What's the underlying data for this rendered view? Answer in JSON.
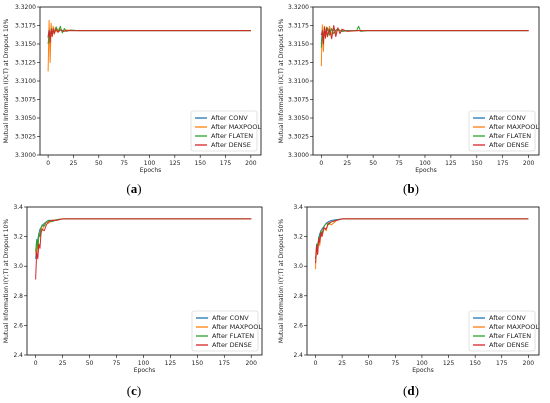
{
  "colors": {
    "After CONV": "#1f77b4",
    "After MAXPOOL": "#ff7f0e",
    "After FLATEN": "#2ca02c",
    "After DENSE": "#d62728"
  },
  "chart_data": [
    {
      "type": "line",
      "caption": "(a)",
      "caption_letter": "a",
      "xlabel": "Epochs",
      "ylabel": "Mutual Information I(X;T) at Dropout 10%",
      "xlim": [
        -8,
        210
      ],
      "ylim": [
        3.3,
        3.32
      ],
      "xticks": [
        0,
        25,
        50,
        75,
        100,
        125,
        150,
        175,
        200
      ],
      "yticks": [
        3.3,
        3.3025,
        3.305,
        3.3075,
        3.31,
        3.3125,
        3.315,
        3.3175,
        3.32
      ],
      "ytick_labels": [
        "3.3000",
        "3.3025",
        "3.3050",
        "3.3075",
        "3.3100",
        "3.3125",
        "3.3150",
        "3.3175",
        "3.3200"
      ],
      "legend_position": "lower-right",
      "series": [
        {
          "name": "After CONV",
          "x": [
            0,
            1,
            2,
            3,
            4,
            5,
            6,
            8,
            10,
            12,
            15,
            20,
            30,
            50,
            100,
            150,
            200
          ],
          "y": [
            3.3158,
            3.3172,
            3.3162,
            3.3168,
            3.3165,
            3.317,
            3.3167,
            3.3169,
            3.3168,
            3.3169,
            3.3168,
            3.3168,
            3.3168,
            3.3168,
            3.3168,
            3.3168,
            3.3168
          ]
        },
        {
          "name": "After MAXPOOL",
          "x": [
            0,
            1,
            2,
            3,
            4,
            5,
            6,
            7,
            9,
            11,
            14,
            18,
            25,
            40,
            100,
            150,
            200
          ],
          "y": [
            3.3113,
            3.3182,
            3.3125,
            3.3178,
            3.316,
            3.3174,
            3.3163,
            3.3172,
            3.3166,
            3.3171,
            3.3167,
            3.3169,
            3.3168,
            3.3168,
            3.3168,
            3.3168,
            3.3168
          ]
        },
        {
          "name": "After FLATEN",
          "x": [
            0,
            1,
            2,
            3,
            4,
            5,
            6,
            8,
            10,
            12,
            14,
            16,
            18,
            22,
            30,
            50,
            100,
            150,
            200
          ],
          "y": [
            3.315,
            3.3165,
            3.3158,
            3.3171,
            3.3162,
            3.317,
            3.3164,
            3.3173,
            3.3166,
            3.3174,
            3.3165,
            3.3171,
            3.3167,
            3.3169,
            3.3168,
            3.3168,
            3.3168,
            3.3168,
            3.3168
          ]
        },
        {
          "name": "After DENSE",
          "x": [
            0,
            1,
            2,
            3,
            4,
            5,
            6,
            8,
            10,
            12,
            15,
            20,
            30,
            50,
            100,
            150,
            200
          ],
          "y": [
            3.316,
            3.3168,
            3.3152,
            3.317,
            3.316,
            3.3171,
            3.3164,
            3.317,
            3.3166,
            3.3169,
            3.3167,
            3.3168,
            3.3168,
            3.3168,
            3.3168,
            3.3168,
            3.3168
          ]
        }
      ]
    },
    {
      "type": "line",
      "caption": "(b)",
      "caption_letter": "b",
      "xlabel": "Epochs",
      "ylabel": "Mutual Information I(X;T) at Dropout 50%",
      "xlim": [
        -8,
        210
      ],
      "ylim": [
        3.3,
        3.32
      ],
      "xticks": [
        0,
        25,
        50,
        75,
        100,
        125,
        150,
        175,
        200
      ],
      "yticks": [
        3.3,
        3.3025,
        3.305,
        3.3075,
        3.31,
        3.3125,
        3.315,
        3.3175,
        3.32
      ],
      "ytick_labels": [
        "3.3000",
        "3.3025",
        "3.3050",
        "3.3075",
        "3.3100",
        "3.3125",
        "3.3150",
        "3.3175",
        "3.3200"
      ],
      "legend_position": "lower-right",
      "series": [
        {
          "name": "After CONV",
          "x": [
            0,
            1,
            2,
            3,
            4,
            6,
            8,
            10,
            12,
            15,
            20,
            30,
            50,
            100,
            150,
            200
          ],
          "y": [
            3.315,
            3.317,
            3.316,
            3.3172,
            3.3164,
            3.317,
            3.3166,
            3.3169,
            3.3168,
            3.3169,
            3.3168,
            3.3168,
            3.3168,
            3.3168,
            3.3168,
            3.3168
          ]
        },
        {
          "name": "After MAXPOOL",
          "x": [
            0,
            1,
            2,
            3,
            4,
            5,
            6,
            8,
            10,
            12,
            14,
            16,
            20,
            30,
            50,
            100,
            150,
            200
          ],
          "y": [
            3.312,
            3.3176,
            3.314,
            3.3174,
            3.3158,
            3.3173,
            3.316,
            3.3174,
            3.3162,
            3.3172,
            3.3165,
            3.317,
            3.3167,
            3.3168,
            3.3168,
            3.3168,
            3.3168,
            3.3168
          ]
        },
        {
          "name": "After FLATEN",
          "x": [
            0,
            1,
            2,
            3,
            4,
            6,
            8,
            10,
            12,
            15,
            20,
            25,
            30,
            34,
            36,
            38,
            45,
            60,
            100,
            150,
            200
          ],
          "y": [
            3.3145,
            3.3168,
            3.3155,
            3.317,
            3.316,
            3.3172,
            3.3162,
            3.3171,
            3.3164,
            3.317,
            3.3167,
            3.3168,
            3.3168,
            3.3168,
            3.3174,
            3.3167,
            3.3168,
            3.3168,
            3.3168,
            3.3168,
            3.3168
          ]
        },
        {
          "name": "After DENSE",
          "x": [
            0,
            1,
            2,
            3,
            4,
            5,
            6,
            8,
            10,
            12,
            14,
            16,
            18,
            20,
            25,
            35,
            60,
            100,
            150,
            200
          ],
          "y": [
            3.3162,
            3.3168,
            3.315,
            3.3173,
            3.3158,
            3.3172,
            3.316,
            3.317,
            3.3157,
            3.3175,
            3.316,
            3.3172,
            3.3164,
            3.317,
            3.3167,
            3.3168,
            3.3168,
            3.3168,
            3.3168,
            3.3168
          ]
        }
      ]
    },
    {
      "type": "line",
      "caption": "(c)",
      "caption_letter": "c",
      "xlabel": "Epochs",
      "ylabel": "Mutual Information I(Y;T) at Dropout 10%",
      "xlim": [
        -8,
        210
      ],
      "ylim": [
        2.4,
        3.4
      ],
      "xticks": [
        0,
        25,
        50,
        75,
        100,
        125,
        150,
        175,
        200
      ],
      "yticks": [
        2.4,
        2.6,
        2.8,
        3.0,
        3.2,
        3.4
      ],
      "ytick_labels": [
        "2.4",
        "2.6",
        "2.8",
        "3.0",
        "3.2",
        "3.4"
      ],
      "legend_position": "lower-right",
      "series": [
        {
          "name": "After CONV",
          "x": [
            0,
            1,
            2,
            3,
            4,
            6,
            8,
            10,
            12,
            15,
            20,
            25,
            30,
            50,
            100,
            150,
            200
          ],
          "y": [
            3.05,
            3.12,
            3.18,
            3.22,
            3.25,
            3.27,
            3.29,
            3.3,
            3.31,
            3.31,
            3.315,
            3.32,
            3.32,
            3.32,
            3.32,
            3.32,
            3.32
          ]
        },
        {
          "name": "After MAXPOOL",
          "x": [
            0,
            1,
            2,
            3,
            4,
            5,
            6,
            8,
            10,
            12,
            15,
            20,
            25,
            30,
            50,
            100,
            150,
            200
          ],
          "y": [
            3.08,
            3.15,
            3.1,
            3.2,
            3.22,
            3.26,
            3.24,
            3.28,
            3.3,
            3.29,
            3.31,
            3.315,
            3.32,
            3.32,
            3.32,
            3.32,
            3.32,
            3.32
          ]
        },
        {
          "name": "After FLATEN",
          "x": [
            0,
            1,
            2,
            3,
            4,
            5,
            6,
            8,
            10,
            12,
            15,
            20,
            25,
            30,
            50,
            100,
            150,
            200
          ],
          "y": [
            3.1,
            3.18,
            3.12,
            3.22,
            3.2,
            3.26,
            3.28,
            3.27,
            3.3,
            3.31,
            3.3,
            3.315,
            3.32,
            3.32,
            3.32,
            3.32,
            3.32,
            3.32
          ]
        },
        {
          "name": "After DENSE",
          "x": [
            0,
            1,
            2,
            3,
            4,
            5,
            6,
            8,
            10,
            12,
            15,
            20,
            25,
            30,
            50,
            100,
            150,
            200
          ],
          "y": [
            2.91,
            3.1,
            3.05,
            3.15,
            3.12,
            3.22,
            3.25,
            3.24,
            3.28,
            3.3,
            3.31,
            3.31,
            3.32,
            3.32,
            3.32,
            3.32,
            3.32,
            3.32
          ]
        }
      ]
    },
    {
      "type": "line",
      "caption": "(d)",
      "caption_letter": "d",
      "xlabel": "Epochs",
      "ylabel": "Mutual Information I(Y;T) at Dropout 50%",
      "xlim": [
        -8,
        210
      ],
      "ylim": [
        2.4,
        3.4
      ],
      "xticks": [
        0,
        25,
        50,
        75,
        100,
        125,
        150,
        175,
        200
      ],
      "yticks": [
        2.4,
        2.6,
        2.8,
        3.0,
        3.2,
        3.4
      ],
      "ytick_labels": [
        "2.4",
        "2.6",
        "2.8",
        "3.0",
        "3.2",
        "3.4"
      ],
      "legend_position": "lower-right",
      "series": [
        {
          "name": "After CONV",
          "x": [
            0,
            1,
            2,
            3,
            4,
            6,
            8,
            10,
            12,
            15,
            20,
            25,
            30,
            50,
            100,
            150,
            200
          ],
          "y": [
            3.05,
            3.1,
            3.15,
            3.18,
            3.22,
            3.25,
            3.27,
            3.29,
            3.3,
            3.31,
            3.315,
            3.32,
            3.32,
            3.32,
            3.32,
            3.32,
            3.32
          ]
        },
        {
          "name": "After MAXPOOL",
          "x": [
            0,
            1,
            2,
            3,
            4,
            5,
            6,
            8,
            10,
            12,
            15,
            20,
            25,
            30,
            50,
            100,
            150,
            200
          ],
          "y": [
            2.98,
            3.12,
            3.08,
            3.18,
            3.14,
            3.22,
            3.2,
            3.26,
            3.24,
            3.29,
            3.28,
            3.31,
            3.32,
            3.32,
            3.32,
            3.32,
            3.32,
            3.32
          ]
        },
        {
          "name": "After FLATEN",
          "x": [
            0,
            1,
            2,
            3,
            4,
            5,
            6,
            8,
            10,
            12,
            15,
            20,
            25,
            30,
            50,
            100,
            150,
            200
          ],
          "y": [
            3.05,
            3.15,
            3.1,
            3.2,
            3.18,
            3.24,
            3.22,
            3.27,
            3.29,
            3.28,
            3.3,
            3.31,
            3.32,
            3.32,
            3.32,
            3.32,
            3.32,
            3.32
          ]
        },
        {
          "name": "After DENSE",
          "x": [
            0,
            1,
            2,
            3,
            4,
            5,
            6,
            8,
            10,
            12,
            15,
            20,
            25,
            30,
            50,
            100,
            150,
            200
          ],
          "y": [
            3.02,
            3.14,
            3.08,
            3.19,
            3.16,
            3.23,
            3.2,
            3.26,
            3.25,
            3.29,
            3.3,
            3.31,
            3.32,
            3.32,
            3.32,
            3.32,
            3.32,
            3.32
          ]
        }
      ]
    }
  ]
}
